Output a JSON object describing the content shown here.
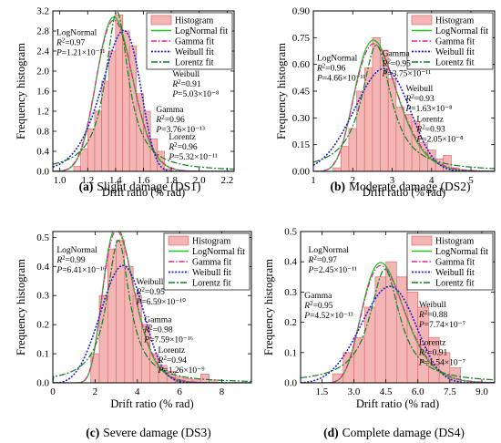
{
  "legend_labels": [
    "Histogram",
    "LogNormal fit",
    "Gamma fit",
    "Weibull fit",
    "Lorentz fit"
  ],
  "colors": {
    "histogram_fill": "#f4b5b5",
    "histogram_edge": "#d97070",
    "lognormal": "#22c422",
    "gamma": "#e0288a",
    "weibull": "#1f1fd6",
    "lorentz": "#0f7f22"
  },
  "chart_data": [
    {
      "type": "bar",
      "caption_letter": "(a)",
      "caption_text": "Slight damage (DS1)",
      "xlabel": "Drift ratio (% rad)",
      "ylabel": "Frequency histogram",
      "xlim": [
        0.95,
        2.25
      ],
      "ylim": [
        0,
        3.2
      ],
      "xticks": [
        1.0,
        1.2,
        1.4,
        1.6,
        1.8,
        2.0,
        2.2
      ],
      "xtick_labels": [
        "1.0",
        "1.2",
        "1.4",
        "1.6",
        "1.8",
        "2.0",
        "2.2"
      ],
      "yticks": [
        0,
        0.4,
        0.8,
        1.2,
        1.6,
        2.0,
        2.4,
        2.8,
        3.2
      ],
      "ytick_labels": [
        "0.0",
        "0.4",
        "0.8",
        "1.2",
        "1.6",
        "2.0",
        "2.4",
        "2.8",
        "3.2"
      ],
      "bin_width": 0.05,
      "bins": [
        1.1,
        1.15,
        1.2,
        1.25,
        1.3,
        1.35,
        1.4,
        1.45,
        1.5,
        1.55,
        1.6,
        1.65,
        1.7,
        1.75
      ],
      "counts": [
        0.1,
        0.45,
        0.85,
        1.2,
        1.8,
        2.4,
        3.12,
        2.8,
        2.5,
        1.55,
        1.2,
        0.65,
        0.4,
        0.05
      ],
      "fits": {
        "lognormal": {
          "kind": "lognormal",
          "mu": 0.336,
          "sigma": 0.093
        },
        "gamma": {
          "kind": "lognormal",
          "mu": 0.336,
          "sigma": 0.095
        },
        "weibull": {
          "kind": "weibull",
          "k": 11.2,
          "lambda": 1.47
        },
        "lorentz": {
          "kind": "lorentz",
          "x0": 1.41,
          "gamma": 0.1
        }
      },
      "annotations": [
        {
          "name": "LogNormal",
          "r2": "0.97",
          "p": "1.21×10⁻¹¹"
        },
        {
          "name": "Weibull",
          "r2": "0.91",
          "p": "5.03×10⁻⁸"
        },
        {
          "name": "Gamma",
          "r2": "0.96",
          "p": "3.76×10⁻¹³"
        },
        {
          "name": "Lorentz",
          "r2": "0.96",
          "p": "5.32×10⁻¹¹"
        }
      ]
    },
    {
      "type": "bar",
      "caption_letter": "(b)",
      "caption_text": "Moderate damage (DS2)",
      "xlabel": "Drift ratio (% rad)",
      "ylabel": "Frequency histogram",
      "xlim": [
        1,
        5.6
      ],
      "ylim": [
        0,
        0.9
      ],
      "xticks": [
        1,
        2,
        3,
        4,
        5
      ],
      "xtick_labels": [
        "1",
        "2",
        "3",
        "4",
        "5"
      ],
      "yticks": [
        0,
        0.15,
        0.3,
        0.45,
        0.6,
        0.75,
        0.9
      ],
      "ytick_labels": [
        "0.00",
        "0.15",
        "0.30",
        "0.45",
        "0.60",
        "0.75",
        "0.90"
      ],
      "bin_width": 0.2,
      "bins": [
        1.5,
        1.7,
        1.9,
        2.1,
        2.3,
        2.5,
        2.7,
        2.9,
        3.1,
        3.3,
        3.5,
        3.7,
        3.9,
        4.1,
        4.3,
        4.5
      ],
      "counts": [
        0.02,
        0.14,
        0.24,
        0.45,
        0.58,
        0.75,
        0.68,
        0.52,
        0.36,
        0.32,
        0.28,
        0.16,
        0.12,
        0.07,
        0.09,
        0.02
      ],
      "fits": {
        "lognormal": {
          "kind": "lognormal",
          "mu": 0.97,
          "sigma": 0.21
        },
        "gamma": {
          "kind": "lognormal",
          "mu": 0.975,
          "sigma": 0.215
        },
        "weibull": {
          "kind": "weibull",
          "k": 4.5,
          "lambda": 2.95
        },
        "lorentz": {
          "kind": "lorentz",
          "x0": 2.6,
          "gamma": 0.45
        }
      },
      "annotations": [
        {
          "name": "LogNormal",
          "r2": "0.96",
          "p": "4.66×10⁻¹¹"
        },
        {
          "name": "Gamma",
          "r2": "0.95",
          "p": "3.75×10⁻¹¹"
        },
        {
          "name": "Weibull",
          "r2": "0.93",
          "p": "1.63×10⁻⁸"
        },
        {
          "name": "Lorentz",
          "r2": "0.93",
          "p": "2.05×10⁻⁸"
        }
      ]
    },
    {
      "type": "bar",
      "caption_letter": "(c)",
      "caption_text": "Severe damage (DS3)",
      "xlabel": "Drift ratio (% rad)",
      "ylabel": "Frequency histogram",
      "xlim": [
        0,
        9.4
      ],
      "ylim": [
        0,
        0.52
      ],
      "xticks": [
        0,
        2,
        4,
        6,
        8
      ],
      "xtick_labels": [
        "0",
        "2",
        "4",
        "6",
        "8"
      ],
      "yticks": [
        0,
        0.1,
        0.2,
        0.3,
        0.4,
        0.5
      ],
      "ytick_labels": [
        "0.0",
        "0.1",
        "0.2",
        "0.3",
        "0.4",
        "0.5"
      ],
      "bin_width": 0.4,
      "bins": [
        1.8,
        2.2,
        2.6,
        3.0,
        3.4,
        3.8,
        4.2,
        4.6,
        5.0,
        5.4,
        5.8,
        6.2,
        6.6,
        7.0,
        7.4
      ],
      "counts": [
        0.1,
        0.3,
        0.46,
        0.49,
        0.4,
        0.3,
        0.2,
        0.1,
        0.06,
        0.04,
        0.02,
        0.015,
        0.01,
        0.03,
        0.01
      ],
      "fits": {
        "lognormal": {
          "kind": "lognormal",
          "mu": 1.16,
          "sigma": 0.24
        },
        "gamma": {
          "kind": "lognormal",
          "mu": 1.165,
          "sigma": 0.245
        },
        "weibull": {
          "kind": "weibull",
          "k": 3.8,
          "lambda": 3.6
        },
        "lorentz": {
          "kind": "lorentz",
          "x0": 3.1,
          "gamma": 0.65
        }
      },
      "annotations": [
        {
          "name": "LogNormal",
          "r2": "0.99",
          "p": "6.41×10⁻¹⁶"
        },
        {
          "name": "Weibull",
          "r2": "0.95",
          "p": "6.59×10⁻¹⁰"
        },
        {
          "name": "Gamma",
          "r2": "0.98",
          "p": "7.59×10⁻¹⁶"
        },
        {
          "name": "Lorentz",
          "r2": "0.94",
          "p": "1.26×10⁻⁹"
        }
      ]
    },
    {
      "type": "bar",
      "caption_letter": "(d)",
      "caption_text": "Complete damage (DS4)",
      "xlabel": "Drift ratio (% rad)",
      "ylabel": "Frequency histogram",
      "xlim": [
        0.5,
        9.6
      ],
      "ylim": [
        0,
        0.5
      ],
      "xticks": [
        1.5,
        3.0,
        4.5,
        6.0,
        7.5,
        9.0
      ],
      "xtick_labels": [
        "1.5",
        "3.0",
        "4.5",
        "6.0",
        "7.5",
        "9.0"
      ],
      "yticks": [
        0,
        0.1,
        0.2,
        0.3,
        0.4,
        0.5
      ],
      "ytick_labels": [
        "0.0",
        "0.1",
        "0.2",
        "0.3",
        "0.4",
        "0.5"
      ],
      "bin_width": 0.5,
      "bins": [
        2.0,
        2.5,
        3.0,
        3.5,
        4.0,
        4.5,
        5.0,
        5.5,
        6.0,
        6.5,
        7.0,
        7.5
      ],
      "counts": [
        0.03,
        0.1,
        0.15,
        0.25,
        0.35,
        0.4,
        0.35,
        0.3,
        0.25,
        0.15,
        0.1,
        0.05
      ],
      "fits": {
        "lognormal": {
          "kind": "lognormal",
          "mu": 1.5,
          "sigma": 0.23
        },
        "gamma": {
          "kind": "lognormal",
          "mu": 1.505,
          "sigma": 0.235
        },
        "weibull": {
          "kind": "weibull",
          "k": 4.2,
          "lambda": 5.0
        },
        "lorentz": {
          "kind": "lorentz",
          "x0": 4.45,
          "gamma": 0.85
        }
      },
      "annotations": [
        {
          "name": "LogNormal",
          "r2": "0.97",
          "p": "2.45×10⁻¹¹"
        },
        {
          "name": "Gamma",
          "r2": "0.95",
          "p": "4.52×10⁻¹³"
        },
        {
          "name": "Weibull",
          "r2": "0.88",
          "p": "7.74×10⁻⁷"
        },
        {
          "name": "Lorentz",
          "r2": "0.91",
          "p": "1.54×10⁻⁷"
        }
      ]
    }
  ]
}
